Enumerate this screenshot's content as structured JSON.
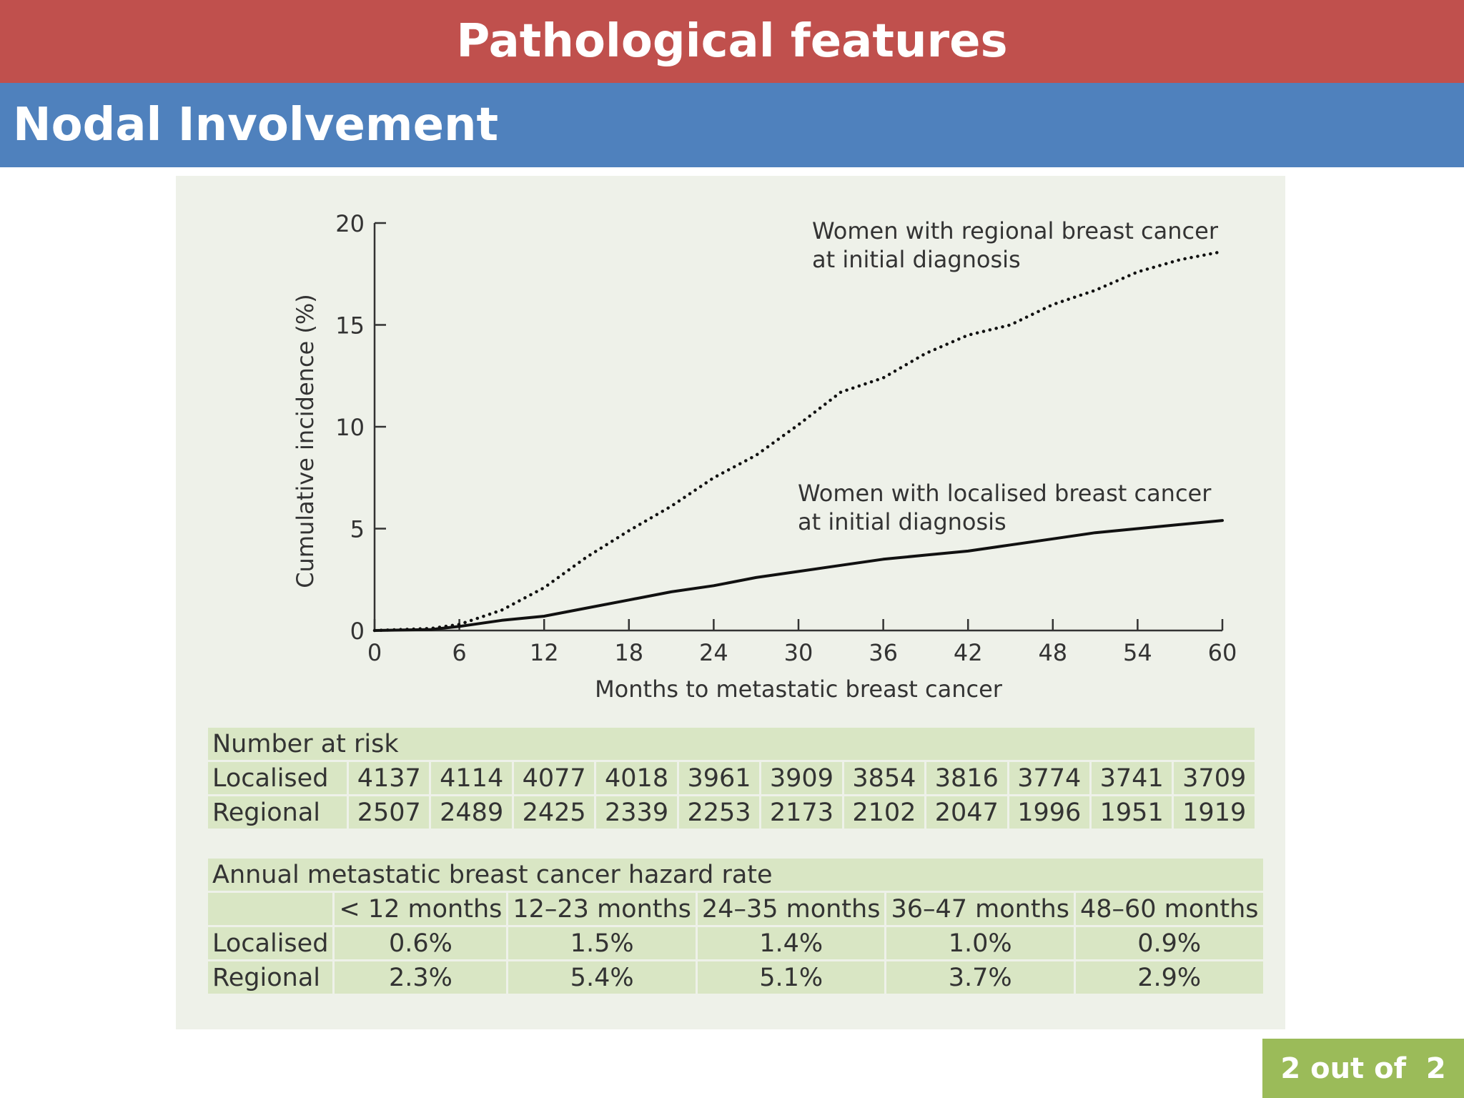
{
  "slide": {
    "title": "Pathological features",
    "subtitle": "Nodal Involvement",
    "page_indicator": {
      "current": "2",
      "separator": "out of",
      "total": "2"
    }
  },
  "colors": {
    "title_bar": "#c0504d",
    "subtitle_bar": "#4f81bd",
    "table_cell": "#d9e6c4",
    "badge": "#9bbb59"
  },
  "chart_data": {
    "type": "line",
    "title": "",
    "xlabel": "Months to metastatic breast cancer",
    "ylabel": "Cumulative incidence (%)",
    "xlim": [
      0,
      60
    ],
    "ylim": [
      0,
      20
    ],
    "xticks": [
      0,
      6,
      12,
      18,
      24,
      30,
      36,
      42,
      48,
      54,
      60
    ],
    "yticks": [
      0,
      5,
      10,
      15,
      20
    ],
    "grid": false,
    "series": [
      {
        "name": "Women with regional breast cancer at initial diagnosis",
        "label_lines": [
          "Women with regional breast cancer",
          "at initial diagnosis"
        ],
        "style": "dotted",
        "x": [
          0,
          4,
          6,
          9,
          12,
          15,
          18,
          21,
          24,
          27,
          30,
          33,
          36,
          39,
          42,
          45,
          48,
          51,
          54,
          57,
          60
        ],
        "y": [
          0,
          0.1,
          0.3,
          1.0,
          2.1,
          3.6,
          4.9,
          6.1,
          7.5,
          8.6,
          10.1,
          11.7,
          12.4,
          13.6,
          14.5,
          15.0,
          16.0,
          16.7,
          17.6,
          18.2,
          18.6
        ]
      },
      {
        "name": "Women with localised breast cancer at initial diagnosis",
        "label_lines": [
          "Women with localised breast cancer",
          "at initial diagnosis"
        ],
        "style": "solid",
        "x": [
          0,
          4,
          6,
          9,
          12,
          15,
          18,
          21,
          24,
          27,
          30,
          33,
          36,
          39,
          42,
          45,
          48,
          51,
          54,
          57,
          60
        ],
        "y": [
          0,
          0.05,
          0.2,
          0.5,
          0.7,
          1.1,
          1.5,
          1.9,
          2.2,
          2.6,
          2.9,
          3.2,
          3.5,
          3.7,
          3.9,
          4.2,
          4.5,
          4.8,
          5.0,
          5.2,
          5.4
        ]
      }
    ]
  },
  "number_at_risk": {
    "header": "Number at risk",
    "rows": [
      {
        "label": "Localised",
        "values": [
          "4137",
          "4114",
          "4077",
          "4018",
          "3961",
          "3909",
          "3854",
          "3816",
          "3774",
          "3741",
          "3709"
        ]
      },
      {
        "label": "Regional",
        "values": [
          "2507",
          "2489",
          "2425",
          "2339",
          "2253",
          "2173",
          "2102",
          "2047",
          "1996",
          "1951",
          "1919"
        ]
      }
    ]
  },
  "hazard_rate": {
    "header": "Annual metastatic breast cancer hazard rate",
    "columns": [
      "< 12 months",
      "12–23 months",
      "24–35 months",
      "36–47 months",
      "48–60 months"
    ],
    "rows": [
      {
        "label": "Localised",
        "values": [
          "0.6%",
          "1.5%",
          "1.4%",
          "1.0%",
          "0.9%"
        ]
      },
      {
        "label": "Regional",
        "values": [
          "2.3%",
          "5.4%",
          "5.1%",
          "3.7%",
          "2.9%"
        ]
      }
    ]
  }
}
